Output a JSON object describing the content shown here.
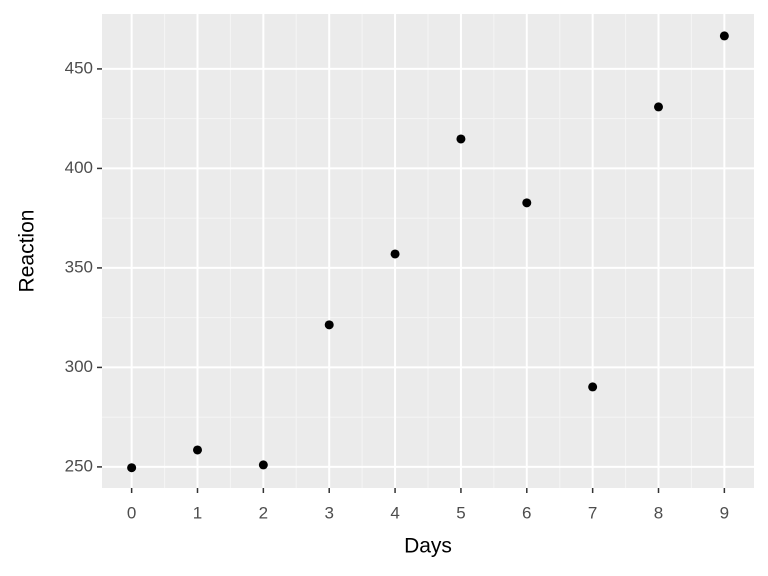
{
  "chart_data": {
    "type": "scatter",
    "x_label": "Days",
    "y_label": "Reaction",
    "x": [
      0,
      1,
      2,
      3,
      4,
      5,
      6,
      7,
      8,
      9
    ],
    "values": [
      249.6,
      258.5,
      251,
      321.4,
      357,
      414.8,
      382.7,
      290.2,
      430.9,
      466.6
    ],
    "color": "#000000",
    "xlim": [
      -0.45,
      9.45
    ],
    "ylim": [
      239.4,
      477.6
    ],
    "xticks": [
      0,
      1,
      2,
      3,
      4,
      5,
      6,
      7,
      8,
      9
    ],
    "yticks": [
      250,
      300,
      350,
      400,
      450
    ],
    "grid": true,
    "minor_grid": true
  }
}
